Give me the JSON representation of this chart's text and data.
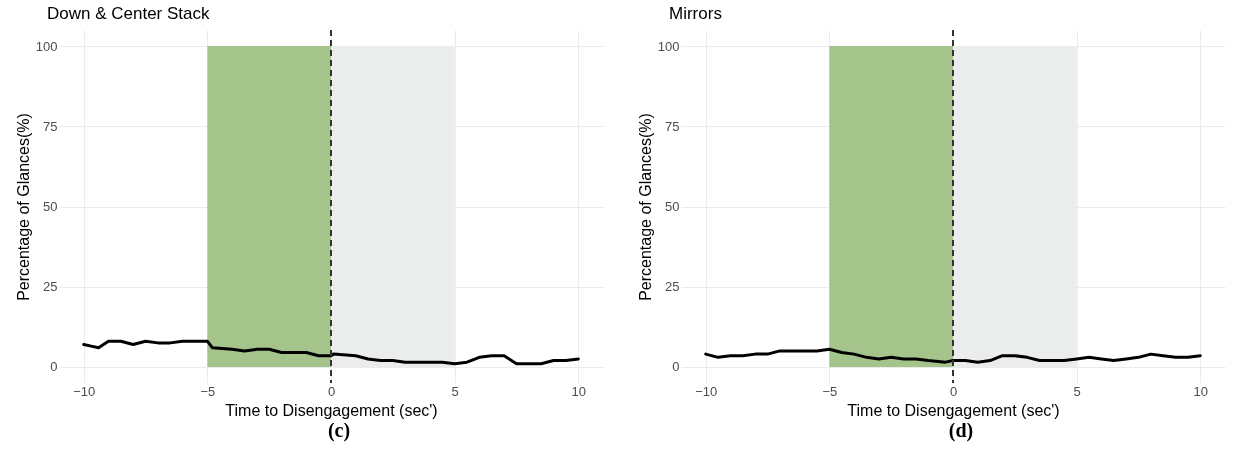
{
  "chart_data": [
    {
      "type": "line",
      "title": "Down & Center Stack",
      "xlabel": "Time to Disengagement (sec')",
      "ylabel": "Percentage of Glances(%)",
      "annotations": [
        "(c)"
      ],
      "x": [
        -10,
        -9.7,
        -9.4,
        -9,
        -8.5,
        -8,
        -7.5,
        -7,
        -6.5,
        -6,
        -5.5,
        -5,
        -4.8,
        -4,
        -3.5,
        -3,
        -2.5,
        -2,
        -1,
        -0.5,
        0,
        0.1,
        1,
        1.5,
        2,
        2.5,
        3,
        3.5,
        4,
        4.5,
        5,
        5.5,
        6,
        6.5,
        7,
        7.5,
        8,
        8.5,
        9,
        9.5,
        10
      ],
      "series": [
        {
          "color": "#000000",
          "values": [
            7,
            6.5,
            6,
            8,
            8,
            7,
            8,
            7.5,
            7.5,
            8,
            8,
            8,
            6,
            5.5,
            5,
            5.5,
            5.5,
            4.5,
            4.5,
            3.5,
            3.5,
            4,
            3.5,
            2.5,
            2,
            2,
            1.5,
            1.5,
            1.5,
            1.5,
            1,
            1.5,
            3,
            3.5,
            3.5,
            1,
            1,
            1,
            2,
            2,
            2.5
          ]
        }
      ],
      "xlim": [
        -11,
        11
      ],
      "ylim": [
        -5,
        105
      ],
      "xticks": [
        -10,
        -5,
        0,
        5,
        10
      ],
      "yticks": [
        0,
        25,
        50,
        75,
        100
      ],
      "grid": true,
      "bands": [
        {
          "axis": "x",
          "from": -5,
          "to": 0,
          "color": "#a5c48c"
        },
        {
          "axis": "x",
          "from": 0,
          "to": 5,
          "color": "#ebecec"
        }
      ],
      "ref_lines": [
        {
          "axis": "x",
          "value": 0,
          "color": "#333333",
          "line_style": "dashed"
        }
      ]
    },
    {
      "type": "line",
      "title": "Mirrors",
      "xlabel": "Time to Disengagement (sec')",
      "ylabel": "Percentage of Glances(%)",
      "annotations": [
        "(d)"
      ],
      "x": [
        -10,
        -9.5,
        -9,
        -8.5,
        -8,
        -7.5,
        -7,
        -6,
        -5.5,
        -5,
        -4.5,
        -4,
        -3.5,
        -3,
        -2.5,
        -2,
        -1.5,
        -1,
        -0.3,
        0,
        0.5,
        1,
        1.5,
        2,
        2.5,
        3,
        3.5,
        4,
        4.5,
        5,
        5.5,
        6,
        6.5,
        7,
        7.5,
        8,
        8.5,
        9,
        9.5,
        10
      ],
      "series": [
        {
          "color": "#000000",
          "values": [
            4,
            3,
            3.5,
            3.5,
            4,
            4,
            5,
            5,
            5,
            5.5,
            4.5,
            4,
            3,
            2.5,
            3,
            2.5,
            2.5,
            2,
            1.5,
            2,
            2,
            1.5,
            2,
            3.5,
            3.5,
            3,
            2,
            2,
            2,
            2.5,
            3,
            2.5,
            2,
            2.5,
            3,
            4,
            3.5,
            3,
            3,
            3.5
          ]
        }
      ],
      "xlim": [
        -11,
        11
      ],
      "ylim": [
        -5,
        105
      ],
      "xticks": [
        -10,
        -5,
        0,
        5,
        10
      ],
      "yticks": [
        0,
        25,
        50,
        75,
        100
      ],
      "grid": true,
      "bands": [
        {
          "axis": "x",
          "from": -5,
          "to": 0,
          "color": "#a5c48c"
        },
        {
          "axis": "x",
          "from": 0,
          "to": 5,
          "color": "#ebecec"
        }
      ],
      "ref_lines": [
        {
          "axis": "x",
          "value": 0,
          "color": "#333333",
          "line_style": "dashed"
        }
      ]
    }
  ]
}
